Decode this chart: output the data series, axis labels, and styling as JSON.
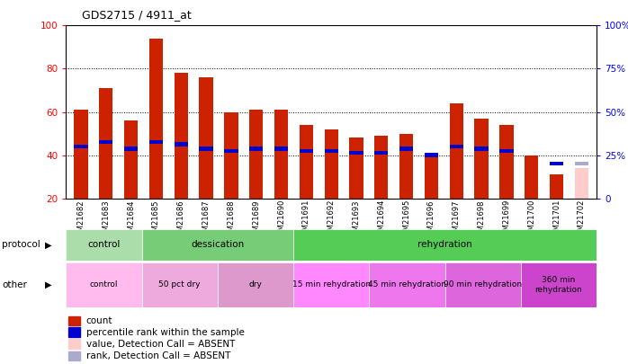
{
  "title": "GDS2715 / 4911_at",
  "samples": [
    "GSM21682",
    "GSM21683",
    "GSM21684",
    "GSM21685",
    "GSM21686",
    "GSM21687",
    "GSM21688",
    "GSM21689",
    "GSM21690",
    "GSM21691",
    "GSM21692",
    "GSM21693",
    "GSM21694",
    "GSM21695",
    "GSM21696",
    "GSM21697",
    "GSM21698",
    "GSM21699",
    "GSM21700",
    "GSM21701",
    "GSM21702"
  ],
  "count_values": [
    61,
    71,
    56,
    94,
    78,
    76,
    60,
    61,
    61,
    54,
    52,
    48,
    49,
    50,
    40,
    64,
    57,
    54,
    40,
    31,
    34
  ],
  "rank_values": [
    44,
    46,
    43,
    46,
    45,
    43,
    42,
    43,
    43,
    42,
    42,
    41,
    41,
    43,
    40,
    44,
    43,
    42,
    null,
    36,
    null
  ],
  "absent_count": [
    null,
    null,
    null,
    null,
    null,
    null,
    null,
    null,
    null,
    null,
    null,
    null,
    null,
    null,
    null,
    null,
    null,
    null,
    null,
    null,
    34
  ],
  "absent_rank": [
    null,
    null,
    null,
    null,
    null,
    null,
    null,
    null,
    null,
    null,
    null,
    null,
    null,
    null,
    null,
    null,
    null,
    null,
    null,
    null,
    36
  ],
  "ymin": 20,
  "ymax": 100,
  "yticks_left": [
    20,
    40,
    60,
    80,
    100
  ],
  "yticks_right_vals": [
    0,
    25,
    50,
    75,
    100
  ],
  "yticks_right_pos": [
    20,
    40,
    60,
    80,
    100
  ],
  "bar_color": "#cc2200",
  "rank_color": "#0000cc",
  "absent_bar_color": "#ffcccc",
  "absent_rank_color": "#aaaacc",
  "bg_color": "#ffffff",
  "protocol_groups": [
    {
      "label": "control",
      "start": 0,
      "end": 3,
      "color": "#aaddaa"
    },
    {
      "label": "dessication",
      "start": 3,
      "end": 9,
      "color": "#77cc77"
    },
    {
      "label": "rehydration",
      "start": 9,
      "end": 21,
      "color": "#55cc55"
    }
  ],
  "other_groups": [
    {
      "label": "control",
      "start": 0,
      "end": 3,
      "color": "#ffbbee"
    },
    {
      "label": "50 pct dry",
      "start": 3,
      "end": 6,
      "color": "#eeaadd"
    },
    {
      "label": "dry",
      "start": 6,
      "end": 9,
      "color": "#dd99cc"
    },
    {
      "label": "15 min rehydration",
      "start": 9,
      "end": 12,
      "color": "#ff88ff"
    },
    {
      "label": "45 min rehydration",
      "start": 12,
      "end": 15,
      "color": "#ee77ee"
    },
    {
      "label": "90 min rehydration",
      "start": 15,
      "end": 18,
      "color": "#dd66dd"
    },
    {
      "label": "360 min\nrehydration",
      "start": 18,
      "end": 21,
      "color": "#cc44cc"
    }
  ],
  "legend_items": [
    {
      "label": "count",
      "color": "#cc2200"
    },
    {
      "label": "percentile rank within the sample",
      "color": "#0000cc"
    },
    {
      "label": "value, Detection Call = ABSENT",
      "color": "#ffcccc"
    },
    {
      "label": "rank, Detection Call = ABSENT",
      "color": "#aaaacc"
    }
  ]
}
